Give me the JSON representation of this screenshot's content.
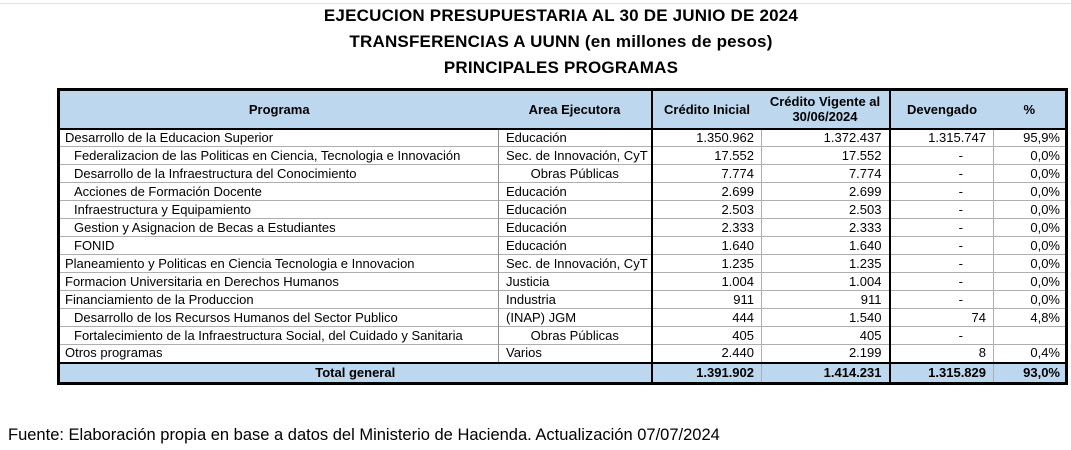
{
  "title": {
    "line1": "EJECUCION PRESUPUESTARIA AL 30 DE JUNIO DE 2024",
    "line2": "TRANSFERENCIAS A UUNN (en millones de pesos)",
    "line3": "PRINCIPALES PROGRAMAS"
  },
  "colors": {
    "header_bg": "#BDD7EE",
    "border_dark": "#000000",
    "border_thin": "#AEAEAE"
  },
  "table": {
    "columns": {
      "programa": "Programa",
      "area": "Area Ejecutora",
      "credito_inicial": "Crédito Inicial",
      "credito_vigente": "Crédito Vigente al 30/06/2024",
      "devengado": "Devengado",
      "pct": "%"
    },
    "rows": [
      {
        "programa": "Desarrollo de la Educacion Superior",
        "indent": false,
        "area": "Educación",
        "area_center": false,
        "ci": "1.350.962",
        "cv": "1.372.437",
        "dev": "1.315.747",
        "dash": false,
        "pct": "95,9%"
      },
      {
        "programa": "Federalizacion de las Politicas en Ciencia, Tecnologia e Innovación",
        "indent": true,
        "area": "Sec. de Innovación, CyT",
        "area_center": false,
        "ci": "17.552",
        "cv": "17.552",
        "dev": "-",
        "dash": true,
        "pct": "0,0%"
      },
      {
        "programa": "Desarrollo de la Infraestructura del Conocimiento",
        "indent": true,
        "area": "Obras Públicas",
        "area_center": true,
        "ci": "7.774",
        "cv": "7.774",
        "dev": "-",
        "dash": true,
        "pct": "0,0%"
      },
      {
        "programa": "Acciones de Formación Docente",
        "indent": true,
        "area": "Educación",
        "area_center": false,
        "ci": "2.699",
        "cv": "2.699",
        "dev": "-",
        "dash": true,
        "pct": "0,0%"
      },
      {
        "programa": "Infraestructura y Equipamiento",
        "indent": true,
        "area": "Educación",
        "area_center": false,
        "ci": "2.503",
        "cv": "2.503",
        "dev": "-",
        "dash": true,
        "pct": "0,0%"
      },
      {
        "programa": "Gestion y Asignacion de Becas a Estudiantes",
        "indent": true,
        "area": "Educación",
        "area_center": false,
        "ci": "2.333",
        "cv": "2.333",
        "dev": "-",
        "dash": true,
        "pct": "0,0%"
      },
      {
        "programa": "FONID",
        "indent": true,
        "area": "Educación",
        "area_center": false,
        "ci": "1.640",
        "cv": "1.640",
        "dev": "-",
        "dash": true,
        "pct": "0,0%"
      },
      {
        "programa": "Planeamiento y Politicas en Ciencia Tecnologia e Innovacion",
        "indent": false,
        "area": "Sec. de Innovación, CyT",
        "area_center": false,
        "ci": "1.235",
        "cv": "1.235",
        "dev": "-",
        "dash": true,
        "pct": "0,0%"
      },
      {
        "programa": "Formacion Universitaria en Derechos Humanos",
        "indent": false,
        "area": "Justicia",
        "area_center": false,
        "ci": "1.004",
        "cv": "1.004",
        "dev": "-",
        "dash": true,
        "pct": "0,0%"
      },
      {
        "programa": "Financiamiento de la Produccion",
        "indent": false,
        "area": "Industria",
        "area_center": false,
        "ci": "911",
        "cv": "911",
        "dev": "-",
        "dash": true,
        "pct": "0,0%"
      },
      {
        "programa": "Desarrollo de los Recursos Humanos del Sector Publico",
        "indent": true,
        "area": "(INAP) JGM",
        "area_center": false,
        "ci": "444",
        "cv": "1.540",
        "dev": "74",
        "dash": false,
        "pct": "4,8%"
      },
      {
        "programa": "Fortalecimiento de la Infraestructura Social, del Cuidado y Sanitaria",
        "indent": true,
        "area": "Obras Públicas",
        "area_center": true,
        "ci": "405",
        "cv": "405",
        "dev": "-",
        "dash": true,
        "pct": ""
      },
      {
        "programa": "Otros programas",
        "indent": false,
        "area": "Varios",
        "area_center": false,
        "ci": "2.440",
        "cv": "2.199",
        "dev": "8",
        "dash": false,
        "pct": "0,4%"
      }
    ],
    "total": {
      "label": "Total general",
      "ci": "1.391.902",
      "cv": "1.414.231",
      "dev": "1.315.829",
      "pct": "93,0%"
    }
  },
  "footer": "Fuente: Elaboración propia en base a datos del Ministerio de Hacienda. Actualización 07/07/2024"
}
